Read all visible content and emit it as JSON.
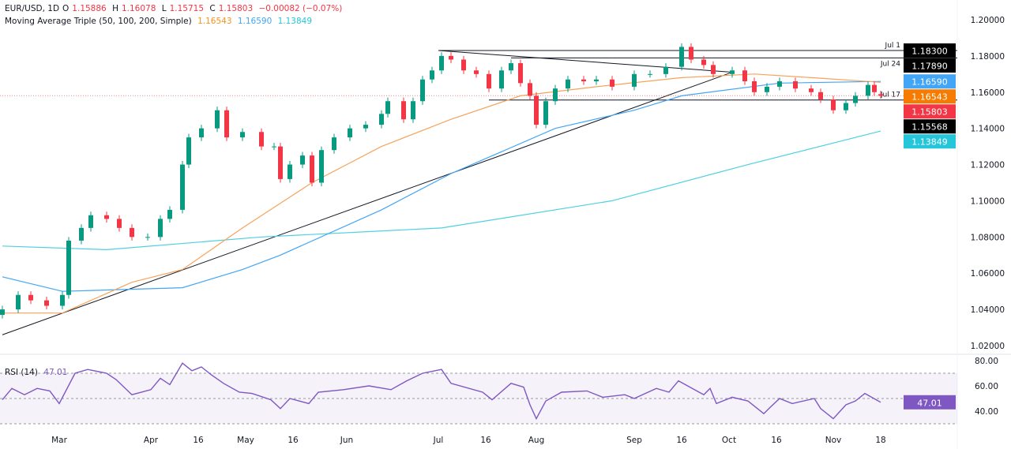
{
  "header": {
    "symbol": "EUR/USD, 1D",
    "o_label": "O",
    "o": "1.15886",
    "h_label": "H",
    "h": "1.16078",
    "l_label": "L",
    "l": "1.15715",
    "c_label": "C",
    "c": "1.15803",
    "change": "−0.00082 (−0.07%)",
    "ma_label": "Moving Average Triple (50, 100, 200, Simple)",
    "ma50": "1.16543",
    "ma100": "1.16590",
    "ma200": "1.13849"
  },
  "rsi_header": {
    "label": "RSI (14)",
    "value": "47.01"
  },
  "colors": {
    "up": "#089981",
    "down": "#f23645",
    "ma50": "#f7a35c",
    "ma100": "#42a5f5",
    "ma200": "#4dd0e1",
    "rsi": "#7e57c2",
    "level_black": "#000000"
  },
  "chart_data": {
    "type": "candlestick",
    "ylim": [
      1.02,
      1.2
    ],
    "y_ticks": [
      "1.20000",
      "1.18000",
      "1.16000",
      "1.14000",
      "1.12000",
      "1.10000",
      "1.08000",
      "1.06000",
      "1.04000",
      "1.02000"
    ],
    "x_ticks": [
      [
        "2025-03-03",
        "Mar"
      ],
      [
        "2025-04-01",
        "Apr"
      ],
      [
        "2025-04-16",
        "16"
      ],
      [
        "2025-05-01",
        "May"
      ],
      [
        "2025-05-16",
        "16"
      ],
      [
        "2025-06-02",
        "Jun"
      ],
      [
        "2025-07-01",
        "Jul"
      ],
      [
        "2025-07-16",
        "16"
      ],
      [
        "2025-08-01",
        "Aug"
      ],
      [
        "2025-09-01",
        "Sep"
      ],
      [
        "2025-09-16",
        "16"
      ],
      [
        "2025-10-01",
        "Oct"
      ],
      [
        "2025-10-16",
        "16"
      ],
      [
        "2025-11-03",
        "Nov"
      ],
      [
        "2025-11-18",
        "18"
      ]
    ],
    "closes": [
      [
        "2025-02-13",
        1.04
      ],
      [
        "2025-02-18",
        1.048
      ],
      [
        "2025-02-22",
        1.045
      ],
      [
        "2025-02-27",
        1.042
      ],
      [
        "2025-03-04",
        1.048
      ],
      [
        "2025-03-06",
        1.078
      ],
      [
        "2025-03-10",
        1.085
      ],
      [
        "2025-03-13",
        1.092
      ],
      [
        "2025-03-18",
        1.09
      ],
      [
        "2025-03-22",
        1.085
      ],
      [
        "2025-03-26",
        1.08
      ],
      [
        "2025-03-31",
        1.08
      ],
      [
        "2025-04-04",
        1.09
      ],
      [
        "2025-04-07",
        1.095
      ],
      [
        "2025-04-11",
        1.12
      ],
      [
        "2025-04-13",
        1.135
      ],
      [
        "2025-04-17",
        1.14
      ],
      [
        "2025-04-22",
        1.15
      ],
      [
        "2025-04-25",
        1.135
      ],
      [
        "2025-04-30",
        1.138
      ],
      [
        "2025-05-06",
        1.13
      ],
      [
        "2025-05-10",
        1.13
      ],
      [
        "2025-05-12",
        1.112
      ],
      [
        "2025-05-15",
        1.12
      ],
      [
        "2025-05-19",
        1.125
      ],
      [
        "2025-05-22",
        1.11
      ],
      [
        "2025-05-25",
        1.128
      ],
      [
        "2025-05-29",
        1.135
      ],
      [
        "2025-06-03",
        1.14
      ],
      [
        "2025-06-08",
        1.142
      ],
      [
        "2025-06-13",
        1.148
      ],
      [
        "2025-06-15",
        1.155
      ],
      [
        "2025-06-20",
        1.145
      ],
      [
        "2025-06-23",
        1.155
      ],
      [
        "2025-06-26",
        1.167
      ],
      [
        "2025-06-29",
        1.172
      ],
      [
        "2025-07-02",
        1.18
      ],
      [
        "2025-07-05",
        1.178
      ],
      [
        "2025-07-09",
        1.172
      ],
      [
        "2025-07-13",
        1.17
      ],
      [
        "2025-07-17",
        1.162
      ],
      [
        "2025-07-21",
        1.172
      ],
      [
        "2025-07-24",
        1.176
      ],
      [
        "2025-07-27",
        1.165
      ],
      [
        "2025-07-30",
        1.158
      ],
      [
        "2025-08-01",
        1.142
      ],
      [
        "2025-08-04",
        1.155
      ],
      [
        "2025-08-07",
        1.162
      ],
      [
        "2025-08-11",
        1.167
      ],
      [
        "2025-08-16",
        1.166
      ],
      [
        "2025-08-20",
        1.167
      ],
      [
        "2025-08-25",
        1.163
      ],
      [
        "2025-09-01",
        1.17
      ],
      [
        "2025-09-06",
        1.17
      ],
      [
        "2025-09-11",
        1.174
      ],
      [
        "2025-09-16",
        1.185
      ],
      [
        "2025-09-19",
        1.178
      ],
      [
        "2025-09-23",
        1.175
      ],
      [
        "2025-09-26",
        1.17
      ],
      [
        "2025-10-02",
        1.172
      ],
      [
        "2025-10-06",
        1.166
      ],
      [
        "2025-10-09",
        1.16
      ],
      [
        "2025-10-13",
        1.163
      ],
      [
        "2025-10-17",
        1.166
      ],
      [
        "2025-10-22",
        1.162
      ],
      [
        "2025-10-27",
        1.16
      ],
      [
        "2025-10-30",
        1.156
      ],
      [
        "2025-11-03",
        1.15
      ],
      [
        "2025-11-07",
        1.154
      ],
      [
        "2025-11-10",
        1.158
      ],
      [
        "2025-11-14",
        1.164
      ],
      [
        "2025-11-16",
        1.16
      ]
    ],
    "last_candle": {
      "date": "2025-11-18",
      "o": 1.15886,
      "h": 1.16078,
      "l": 1.15715,
      "c": 1.15803
    },
    "ma200": [
      [
        "2025-02-13",
        1.075
      ],
      [
        "2025-03-18",
        1.073
      ],
      [
        "2025-05-06",
        1.08
      ],
      [
        "2025-07-02",
        1.085
      ],
      [
        "2025-08-25",
        1.1
      ],
      [
        "2025-10-07",
        1.12
      ],
      [
        "2025-11-18",
        1.13849
      ]
    ],
    "ma100": [
      [
        "2025-02-13",
        1.058
      ],
      [
        "2025-03-04",
        1.05
      ],
      [
        "2025-04-11",
        1.052
      ],
      [
        "2025-04-30",
        1.062
      ],
      [
        "2025-05-12",
        1.07
      ],
      [
        "2025-06-13",
        1.095
      ],
      [
        "2025-07-05",
        1.115
      ],
      [
        "2025-08-07",
        1.14
      ],
      [
        "2025-09-01",
        1.15
      ],
      [
        "2025-09-16",
        1.158
      ],
      [
        "2025-10-17",
        1.165
      ],
      [
        "2025-11-18",
        1.1659
      ]
    ],
    "ma50": [
      [
        "2025-02-13",
        1.038
      ],
      [
        "2025-03-04",
        1.038
      ],
      [
        "2025-03-26",
        1.055
      ],
      [
        "2025-04-11",
        1.062
      ],
      [
        "2025-04-30",
        1.085
      ],
      [
        "2025-05-22",
        1.11
      ],
      [
        "2025-06-13",
        1.13
      ],
      [
        "2025-07-05",
        1.145
      ],
      [
        "2025-07-27",
        1.158
      ],
      [
        "2025-08-20",
        1.163
      ],
      [
        "2025-09-16",
        1.168
      ],
      [
        "2025-10-09",
        1.17
      ],
      [
        "2025-10-27",
        1.168
      ],
      [
        "2025-11-18",
        1.16543
      ]
    ],
    "trendlines": [
      {
        "from": [
          "2025-02-13",
          1.026
        ],
        "to": [
          "2025-10-02",
          1.171
        ]
      },
      {
        "from": [
          "2025-07-01",
          1.183
        ],
        "to": [
          "2025-10-02",
          1.171
        ]
      }
    ],
    "levels": [
      {
        "label": "Jul 1",
        "value": 1.183,
        "from": "2025-07-01",
        "badge": "1.18300",
        "color": "#000000"
      },
      {
        "label": "Jul 24",
        "value": 1.1789,
        "from": "2025-07-24",
        "badge": "1.17890",
        "color": "#000000"
      },
      {
        "label": "Jul 17",
        "value": 1.15568,
        "from": "2025-07-17",
        "badge": "1.15568",
        "color": "#000000"
      }
    ],
    "price_badges": [
      {
        "value": 1.1659,
        "text": "1.16590",
        "color": "#42a5f5"
      },
      {
        "value": 1.16543,
        "text": "1.16543",
        "color": "#f57c00"
      },
      {
        "value": 1.15803,
        "text": "1.15803",
        "color": "#f23645"
      },
      {
        "value": 1.13849,
        "text": "1.13849",
        "color": "#26c6da"
      }
    ],
    "rsi": {
      "ylim": [
        30,
        80
      ],
      "upper": 70,
      "middle": 50,
      "lower": 30,
      "ticks": [
        "80.00",
        "60.00",
        "40.00"
      ],
      "badge": "47.01",
      "values": [
        [
          "2025-02-13",
          49
        ],
        [
          "2025-02-16",
          58
        ],
        [
          "2025-02-20",
          53
        ],
        [
          "2025-02-24",
          58
        ],
        [
          "2025-02-28",
          56
        ],
        [
          "2025-03-03",
          46
        ],
        [
          "2025-03-08",
          70
        ],
        [
          "2025-03-12",
          73
        ],
        [
          "2025-03-18",
          70
        ],
        [
          "2025-03-21",
          65
        ],
        [
          "2025-03-26",
          53
        ],
        [
          "2025-04-01",
          57
        ],
        [
          "2025-04-04",
          66
        ],
        [
          "2025-04-07",
          61
        ],
        [
          "2025-04-11",
          78
        ],
        [
          "2025-04-14",
          72
        ],
        [
          "2025-04-17",
          75
        ],
        [
          "2025-04-20",
          69
        ],
        [
          "2025-04-24",
          62
        ],
        [
          "2025-04-29",
          55
        ],
        [
          "2025-05-03",
          54
        ],
        [
          "2025-05-09",
          49
        ],
        [
          "2025-05-12",
          42
        ],
        [
          "2025-05-15",
          50
        ],
        [
          "2025-05-21",
          46
        ],
        [
          "2025-05-24",
          55
        ],
        [
          "2025-06-01",
          57
        ],
        [
          "2025-06-09",
          60
        ],
        [
          "2025-06-16",
          57
        ],
        [
          "2025-06-21",
          64
        ],
        [
          "2025-06-26",
          70
        ],
        [
          "2025-07-02",
          73
        ],
        [
          "2025-07-05",
          62
        ],
        [
          "2025-07-15",
          55
        ],
        [
          "2025-07-18",
          49
        ],
        [
          "2025-07-24",
          62
        ],
        [
          "2025-07-28",
          59
        ],
        [
          "2025-07-30",
          45
        ],
        [
          "2025-08-01",
          34
        ],
        [
          "2025-08-04",
          48
        ],
        [
          "2025-08-09",
          55
        ],
        [
          "2025-08-17",
          56
        ],
        [
          "2025-08-22",
          51
        ],
        [
          "2025-08-29",
          53
        ],
        [
          "2025-09-01",
          50
        ],
        [
          "2025-09-08",
          58
        ],
        [
          "2025-09-12",
          55
        ],
        [
          "2025-09-15",
          64
        ],
        [
          "2025-09-23",
          53
        ],
        [
          "2025-09-25",
          58
        ],
        [
          "2025-09-27",
          46
        ],
        [
          "2025-10-02",
          51
        ],
        [
          "2025-10-07",
          48
        ],
        [
          "2025-10-12",
          38
        ],
        [
          "2025-10-14",
          43
        ],
        [
          "2025-10-17",
          50
        ],
        [
          "2025-10-21",
          46
        ],
        [
          "2025-10-28",
          50
        ],
        [
          "2025-10-30",
          42
        ],
        [
          "2025-11-03",
          34
        ],
        [
          "2025-11-07",
          45
        ],
        [
          "2025-11-10",
          48
        ],
        [
          "2025-11-13",
          54
        ],
        [
          "2025-11-18",
          47.01
        ]
      ]
    }
  }
}
